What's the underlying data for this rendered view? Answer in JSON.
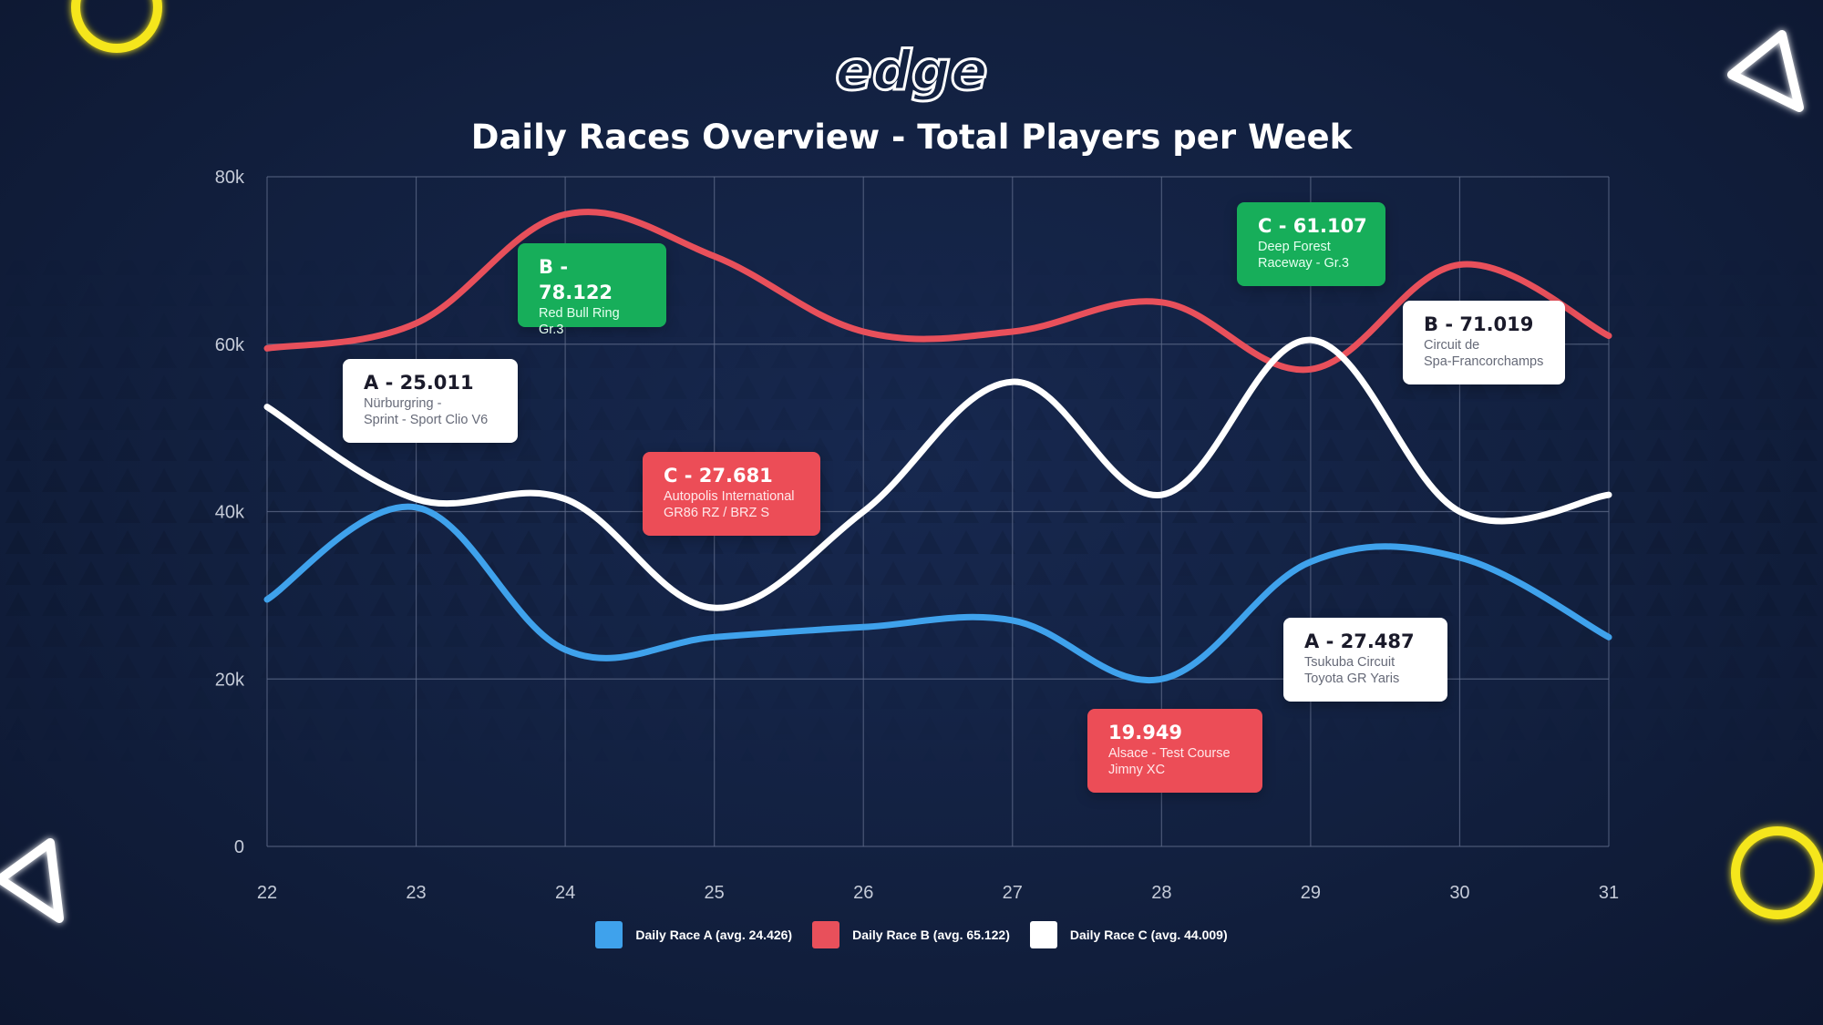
{
  "title": "Daily Races Overview - Total Players per Week",
  "logo_text": "edge",
  "colors": {
    "series_a": "#3fa2ec",
    "series_b": "#e8505b",
    "series_c": "#ffffff",
    "grid": "#5d6a88",
    "tick": "#c5cbd8",
    "badge_green": "#17ae5a",
    "badge_red": "#ec4d57",
    "badge_white": "#ffffff",
    "deco_yellow": "#f5e61a"
  },
  "chart_data": {
    "type": "line",
    "title": "Daily Races Overview - Total Players per Week",
    "xlabel": "",
    "ylabel": "",
    "x": [
      22,
      23,
      24,
      25,
      26,
      27,
      28,
      29,
      30,
      31
    ],
    "x_ticks": [
      "22",
      "23",
      "24",
      "25",
      "26",
      "27",
      "28",
      "29",
      "30",
      "31"
    ],
    "y_ticks": [
      "0",
      "20k",
      "40k",
      "60k",
      "80k"
    ],
    "y_tick_values": [
      0,
      20000,
      40000,
      60000,
      80000
    ],
    "ylim": [
      0,
      80000
    ],
    "grid": true,
    "legend_position": "bottom",
    "series": [
      {
        "name": "Daily Race A (avg. 24.426)",
        "key": "series_a",
        "values": [
          29500,
          40500,
          23500,
          25000,
          26200,
          27000,
          20000,
          34000,
          34500,
          25000
        ]
      },
      {
        "name": "Daily Race B (avg. 65.122)",
        "key": "series_b",
        "values": [
          59500,
          62500,
          75500,
          70500,
          61500,
          61500,
          65000,
          57000,
          69500,
          61000
        ]
      },
      {
        "name": "Daily Race C (avg. 44.009)",
        "key": "series_c",
        "values": [
          52500,
          41500,
          41500,
          28500,
          40000,
          55500,
          42000,
          60500,
          40000,
          42000
        ]
      }
    ],
    "annotations": [
      {
        "style": "white",
        "head": "A - 25.011",
        "lines": [
          "Nürburgring -",
          "Sprint - Sport Clio V6"
        ]
      },
      {
        "style": "green",
        "head": "B - 78.122",
        "lines": [
          "Red Bull Ring",
          "Gr.3"
        ]
      },
      {
        "style": "red",
        "head": "C - 27.681",
        "lines": [
          "Autopolis International",
          "GR86 RZ / BRZ S"
        ]
      },
      {
        "style": "red",
        "head": "19.949",
        "lines": [
          "Alsace - Test Course",
          "Jimny XC"
        ]
      },
      {
        "style": "green",
        "head": "C - 61.107",
        "lines": [
          "Deep Forest",
          "Raceway - Gr.3"
        ]
      },
      {
        "style": "white",
        "head": "B - 71.019",
        "lines": [
          "Circuit de",
          "Spa-Francorchamps"
        ]
      },
      {
        "style": "white",
        "head": "A - 27.487",
        "lines": [
          "Tsukuba Circuit",
          "Toyota GR Yaris"
        ]
      }
    ]
  }
}
